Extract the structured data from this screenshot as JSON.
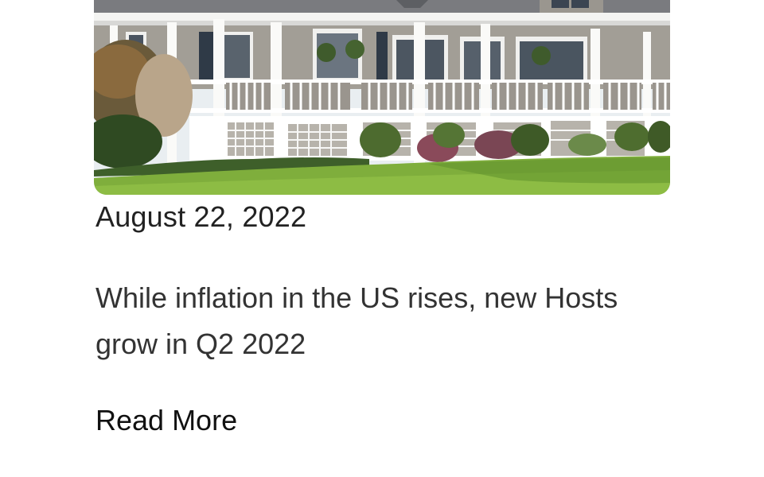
{
  "article": {
    "date": "August 22, 2022",
    "headline": "While inflation in the US rises, new Hosts grow in Q2 2022",
    "read_more_label": "Read More"
  },
  "hero_image": {
    "subject": "house-with-wraparound-porch-photo"
  },
  "colors": {
    "text": "#222222",
    "link": "#111111",
    "background": "#ffffff"
  }
}
